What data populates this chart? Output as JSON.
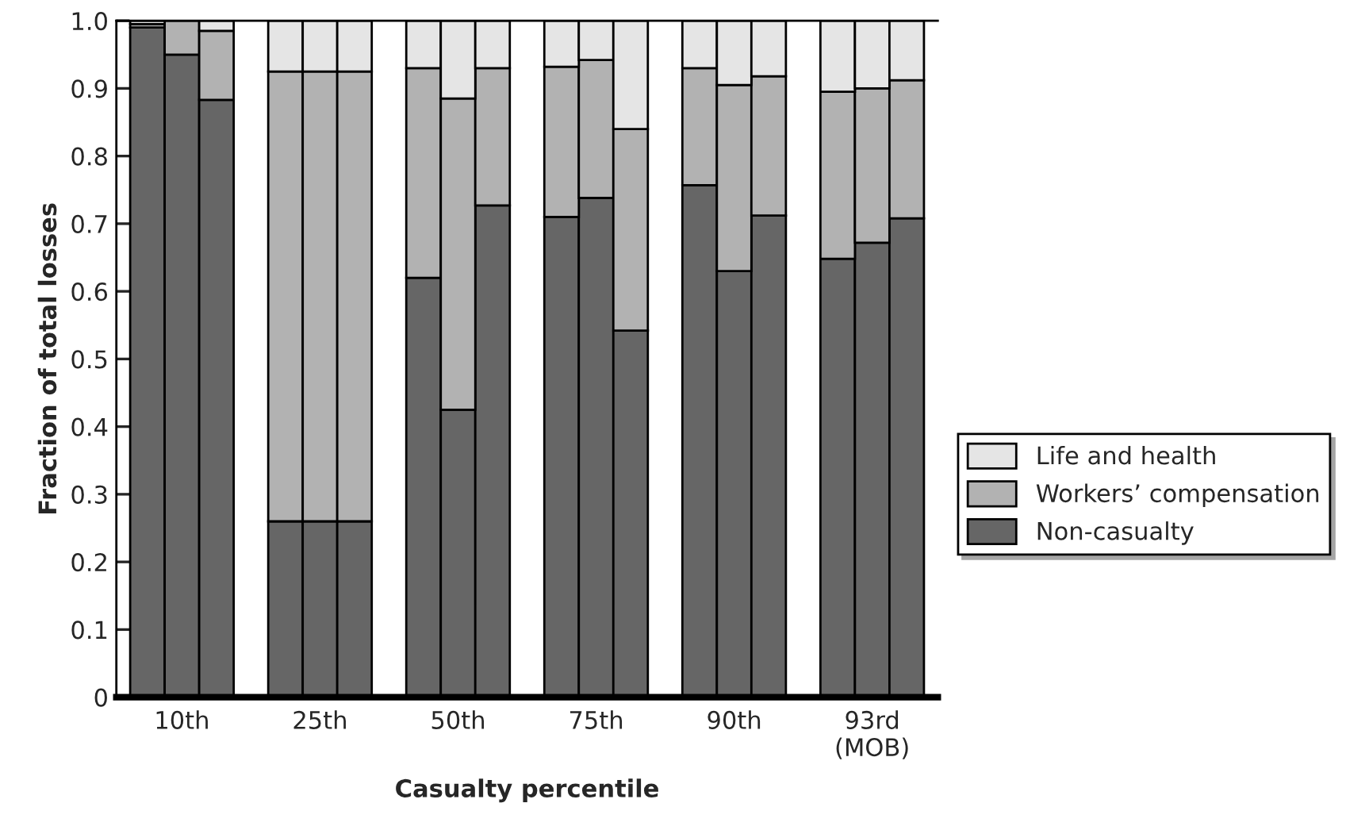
{
  "chart_data": {
    "type": "bar",
    "stacked": true,
    "xlabel": "Casualty percentile",
    "ylabel": "Fraction of total losses",
    "categories": [
      null,
      "10th",
      null,
      null,
      null,
      "25th",
      null,
      null,
      null,
      "50th",
      null,
      null,
      null,
      "75th",
      null,
      null,
      null,
      "90th",
      null,
      null,
      null,
      "93rd\n(MOB)",
      null
    ],
    "series": [
      {
        "name": "Non-casualty",
        "color": "#666666",
        "values": [
          0.99,
          0.95,
          0.883,
          null,
          0.26,
          0.26,
          0.26,
          null,
          0.62,
          0.425,
          0.727,
          null,
          0.71,
          0.738,
          0.542,
          null,
          0.757,
          0.63,
          0.712,
          null,
          0.648,
          0.672,
          0.708
        ]
      },
      {
        "name": "Workers’ compensation",
        "color": "#b2b2b2",
        "values": [
          0.005,
          0.05,
          0.102,
          null,
          0.665,
          0.665,
          0.665,
          null,
          0.31,
          0.46,
          0.203,
          null,
          0.222,
          0.204,
          0.298,
          null,
          0.173,
          0.275,
          0.206,
          null,
          0.247,
          0.228,
          0.204
        ]
      },
      {
        "name": "Life and health",
        "color": "#e5e5e5",
        "values": [
          0.005,
          null,
          0.015,
          null,
          0.075,
          0.075,
          0.075,
          null,
          0.07,
          0.115,
          0.07,
          null,
          0.068,
          0.058,
          0.16,
          null,
          0.07,
          0.095,
          0.082,
          null,
          0.105,
          0.1,
          0.088
        ]
      }
    ],
    "ylim": [
      0,
      1
    ],
    "yticks": [
      {
        "value": 0,
        "label": "0"
      },
      0.1,
      0.2,
      0.3,
      0.4,
      0.5,
      0.6,
      0.7,
      0.8,
      0.9,
      {
        "value": 1,
        "label": "1.0"
      }
    ],
    "legend": "right",
    "grid": false
  }
}
